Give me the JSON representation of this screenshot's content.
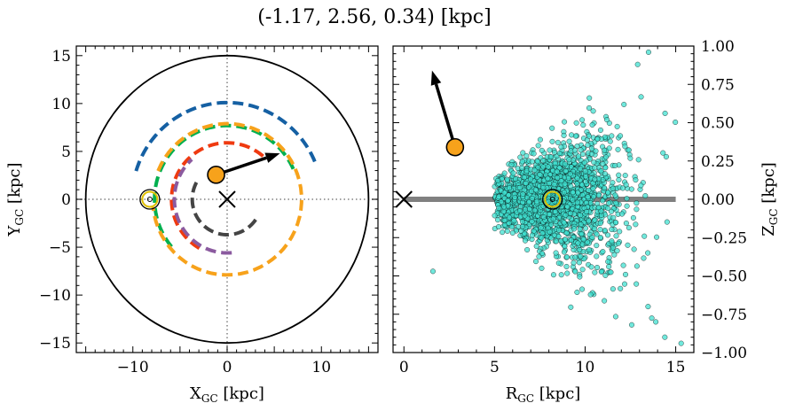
{
  "chart_data": [
    {
      "type": "scatter",
      "title": "(-1.17, 2.56, 0.34) [kpc]",
      "xlabel": "X_GC [kpc]",
      "ylabel": "Y_GC [kpc]",
      "xlim": [
        -16,
        16
      ],
      "ylim": [
        -16,
        16
      ],
      "x_ticks": [
        -10,
        0,
        10
      ],
      "y_ticks": [
        -15,
        -10,
        -5,
        0,
        5,
        10,
        15
      ],
      "tick_label_text": {
        "-15": "−15",
        "-10": "−10",
        "-5": "−5",
        "0": "0",
        "5": "5",
        "10": "10",
        "15": "15"
      },
      "grid": false,
      "reference_lines": {
        "x": 0,
        "y": 0,
        "style": "dotted",
        "color": "#808080"
      },
      "boundary_circle": {
        "center": [
          0,
          0
        ],
        "radius": 15
      },
      "galactic_center_marker": {
        "x": 0,
        "y": 0,
        "marker": "x"
      },
      "sun_marker": {
        "x": -8.2,
        "y": 0
      },
      "object": {
        "x": -1.17,
        "y": 2.56,
        "color": "#f7a21b"
      },
      "velocity_arrow": {
        "from": [
          -1.17,
          2.56
        ],
        "to": [
          5.6,
          4.8
        ]
      },
      "spiral_arms": [
        {
          "color": "#1560a3",
          "radius": 10.1,
          "theta_start_deg": 163,
          "theta_end_deg": 20
        },
        {
          "color": "#00b04f",
          "radius": 7.7,
          "theta_start_deg": 220,
          "theta_end_deg": 20
        },
        {
          "color": "#f7a21b",
          "radius": 7.9,
          "theta_start_deg": 158,
          "theta_end_deg": 186
        },
        {
          "color": "#ef3a10",
          "radius": 5.9,
          "theta_start_deg": 240,
          "theta_end_deg": 48
        },
        {
          "color": "#8b5a9f",
          "radius": 5.6,
          "theta_start_deg": 275,
          "theta_end_deg": 132
        },
        {
          "color": "#444444",
          "radius": 3.7,
          "theta_start_deg": 325,
          "theta_end_deg": 147
        }
      ]
    },
    {
      "type": "scatter",
      "xlabel": "R_GC [kpc]",
      "ylabel": "Z_GC [kpc]",
      "xlim": [
        -0.6,
        16
      ],
      "ylim": [
        -1.0,
        1.0
      ],
      "x_ticks": [
        0,
        5,
        10,
        15
      ],
      "y_ticks": [
        -1.0,
        -0.75,
        -0.5,
        -0.25,
        0.0,
        0.25,
        0.5,
        0.75,
        1.0
      ],
      "y_tick_labels": [
        "−1.00",
        "−0.75",
        "−0.50",
        "−0.25",
        "0.00",
        "0.25",
        "0.50",
        "0.75",
        "1.00"
      ],
      "y_axis_side": "right",
      "grid": false,
      "disk_plane": {
        "y": 0.0,
        "x_range": [
          0,
          15
        ],
        "color": "#808080"
      },
      "galactic_center_marker": {
        "x": 0,
        "y": 0,
        "marker": "x"
      },
      "sun_marker": {
        "x": 8.2,
        "y": 0.0
      },
      "object": {
        "x": 2.82,
        "y": 0.34,
        "color": "#f7a21b"
      },
      "velocity_arrow": {
        "from": [
          2.82,
          0.34
        ],
        "to": [
          1.55,
          0.84
        ]
      },
      "points_color": "#40e0d0",
      "points_model": {
        "count": 2000,
        "r_center": 8.3,
        "r_std": 1.9,
        "r_min": 5.0,
        "r_max": 15.5,
        "z_std_inner": 0.09,
        "z_std_growth": 0.035,
        "outlier_points": [
          [
            1.6,
            -0.47
          ],
          [
            13.9,
            -0.8
          ],
          [
            14.4,
            -0.9
          ],
          [
            15.3,
            -0.94
          ],
          [
            13.5,
            0.96
          ],
          [
            12.9,
            0.88
          ],
          [
            7.6,
            -0.45
          ]
        ]
      }
    }
  ]
}
